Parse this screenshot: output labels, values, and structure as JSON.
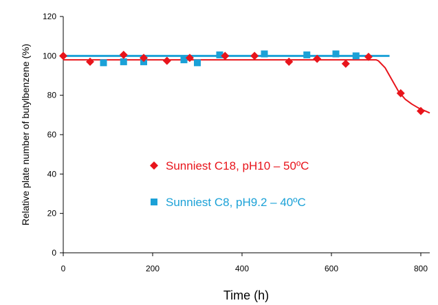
{
  "chart_data": {
    "type": "scatter",
    "xlabel": "Time (h)",
    "ylabel": "Relative plate number of butylbenzene (%)",
    "xlim": [
      0,
      820
    ],
    "ylim": [
      0,
      120
    ],
    "x_ticks": [
      "0",
      "200",
      "400",
      "600",
      "800"
    ],
    "y_ticks": [
      "0",
      "20",
      "40",
      "60",
      "80",
      "100",
      "120"
    ],
    "legend_position": "center-left",
    "grid": false,
    "series": [
      {
        "name": "Sunniest C18, pH10 – 50ºC",
        "color": "#e8141b",
        "marker": "diamond",
        "x": [
          0,
          60,
          135,
          180,
          232,
          283,
          362,
          428,
          505,
          568,
          632,
          683,
          755,
          800
        ],
        "y": [
          100,
          97,
          100.5,
          99,
          97.5,
          99,
          100,
          100,
          97,
          98.5,
          96,
          99.5,
          81,
          72
        ],
        "trend": {
          "x": [
            0,
            700,
            705,
            720,
            735,
            750,
            765,
            780,
            795,
            810,
            820
          ],
          "y": [
            98,
            98,
            97.5,
            94,
            88,
            82,
            78,
            75.5,
            73.5,
            72,
            71
          ]
        }
      },
      {
        "name": "Sunniest C8, pH9.2 – 40ºC",
        "color": "#1ba1d7",
        "marker": "square",
        "x": [
          90,
          135,
          180,
          270,
          300,
          350,
          450,
          545,
          610,
          655
        ],
        "y": [
          96.5,
          97,
          97,
          98,
          96.5,
          100.5,
          101,
          100.5,
          101,
          100
        ],
        "trend": {
          "x": [
            0,
            730
          ],
          "y": [
            100,
            100
          ]
        }
      }
    ]
  }
}
